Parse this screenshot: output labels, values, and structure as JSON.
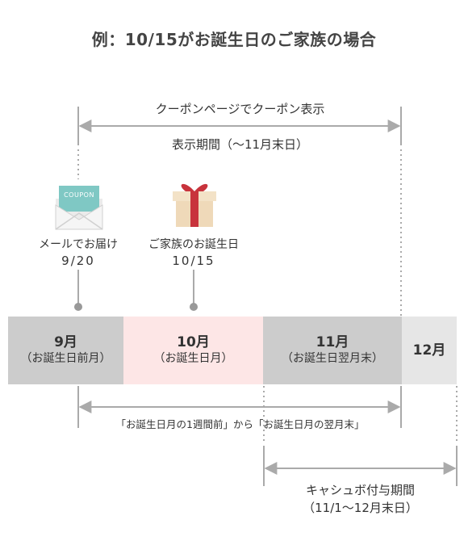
{
  "title": "例：10/15がお誕生日のご家族の場合",
  "coupon_span": {
    "line1": "クーポンページでクーポン表示",
    "line2": "表示期間（〜11月末日）"
  },
  "mail": {
    "icon_text": "COUPON",
    "label": "メールでお届け",
    "date": "9/20"
  },
  "birthday": {
    "label": "ご家族のお誕生日",
    "date": "10/15"
  },
  "months": [
    {
      "month": "9月",
      "sub": "（お誕生日前月）",
      "color": "#cccccc"
    },
    {
      "month": "10月",
      "sub": "（お誕生日月）",
      "color": "#fde6e6"
    },
    {
      "month": "11月",
      "sub": "（お誕生日翌月末）",
      "color": "#cccccc"
    },
    {
      "month": "12月",
      "sub": "",
      "color": "#e6e6e6"
    }
  ],
  "usage_span": {
    "label": "「お誕生日月の1週間前」から「お誕生日月の翌月末」"
  },
  "cashback": {
    "line1": "キャシュボ付与期間",
    "line2": "（11/1〜12月末日）"
  },
  "colors": {
    "line": "#aaaaaa",
    "dot": "#999999",
    "envelope": "#7fc8c4",
    "gift_box": "#efd9b9",
    "ribbon": "#c8333c"
  }
}
